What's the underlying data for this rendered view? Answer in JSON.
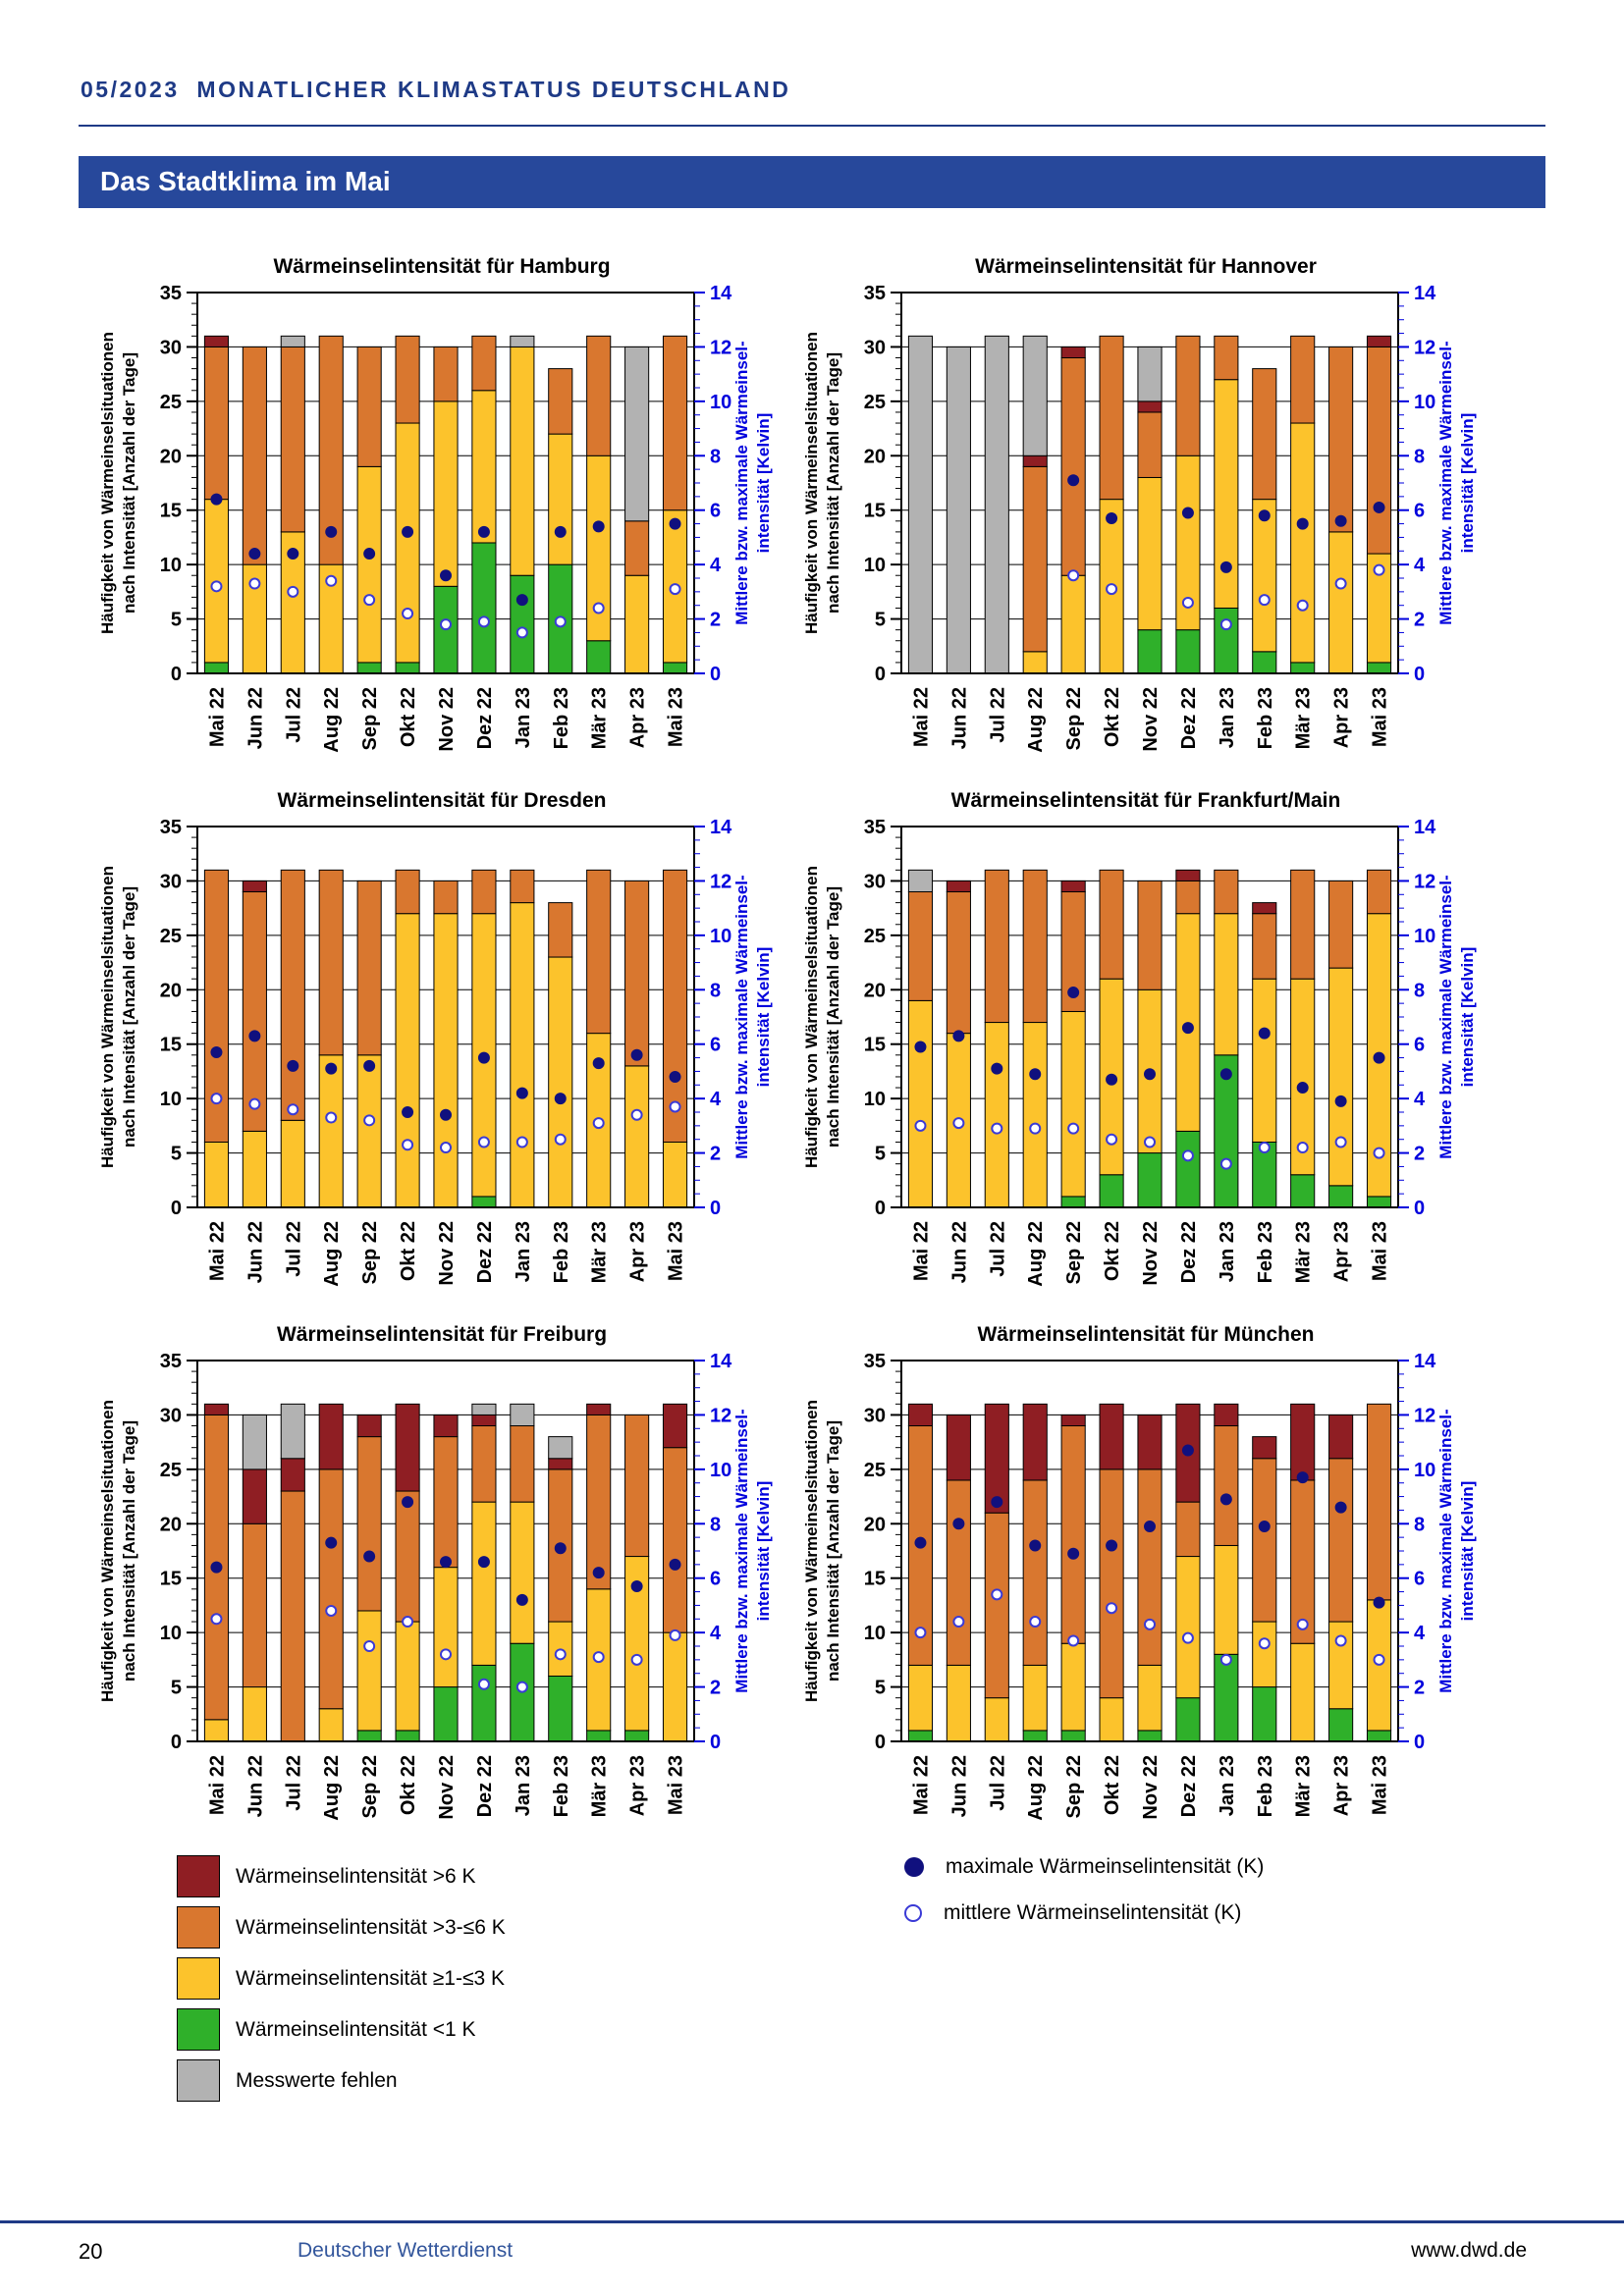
{
  "page": {
    "header_title": "05/2023  MONATLICHER KLIMASTATUS DEUTSCHLAND",
    "banner_title": "Das Stadtklima im Mai"
  },
  "footer": {
    "page_number": "20",
    "publisher": "Deutscher Wetterdienst",
    "website": "www.dwd.de"
  },
  "colors": {
    "darkred": "#8f1e23",
    "orange": "#d9772f",
    "yellow": "#fcc32c",
    "green": "#2fb02a",
    "gray": "#b2b2b2",
    "axis_blue": "#0000dd",
    "dot_fill": "#10107e",
    "dot_open": "#3a3ad6",
    "header_blue": "#1e3a86",
    "banner_bg": "#27489b",
    "footer_link_blue": "#33569c"
  },
  "legend": {
    "categories": [
      {
        "label": "Wärmeinselintensität >6 K",
        "color": "darkred"
      },
      {
        "label": "Wärmeinselintensität >3-≤6 K",
        "color": "orange"
      },
      {
        "label": "Wärmeinselintensität ≥1-≤3 K",
        "color": "yellow"
      },
      {
        "label": "Wärmeinselintensität <1 K",
        "color": "green"
      },
      {
        "label": "Messwerte fehlen",
        "color": "gray"
      }
    ],
    "points": [
      {
        "label": "maximale Wärmeinselintensität (K)",
        "style": "filled"
      },
      {
        "label": "mittlere Wärmeinselintensität (K)",
        "style": "open"
      }
    ]
  },
  "chart_common": {
    "left_axis": {
      "label": [
        "Häufigkeit von Wärmeinselsituationen",
        "nach Intensität [Anzahl der Tage]"
      ],
      "min": 0,
      "max": 35,
      "major_step": 5,
      "minor_step": 1
    },
    "right_axis": {
      "label": [
        "Mittlere bzw. maximale Wärmeinsel-",
        "intensität [Kelvin]"
      ],
      "min": 0,
      "max": 14,
      "major_step": 2,
      "minor_step": 0.5
    },
    "grid": "horizontal-majors",
    "legend_position": "below-figure"
  },
  "chart_data": [
    {
      "city": "Hamburg",
      "title": "Wärmeinselintensität für Hamburg",
      "type": "bar",
      "stacked": true,
      "categories": [
        "Mai 22",
        "Jun 22",
        "Jul 22",
        "Aug 22",
        "Sep 22",
        "Okt 22",
        "Nov 22",
        "Dez 22",
        "Jan 23",
        "Feb 23",
        "Mär 23",
        "Apr 23",
        "Mai 23"
      ],
      "series": [
        {
          "name": "Wärmeinselintensität <1 K",
          "color": "green",
          "values": [
            1,
            0,
            0,
            0,
            1,
            1,
            8,
            12,
            9,
            10,
            3,
            0,
            1
          ]
        },
        {
          "name": "Wärmeinselintensität ≥1-≤3 K",
          "color": "yellow",
          "values": [
            15,
            10,
            13,
            10,
            18,
            22,
            17,
            14,
            21,
            12,
            17,
            9,
            14
          ]
        },
        {
          "name": "Wärmeinselintensität >3-≤6 K",
          "color": "orange",
          "values": [
            14,
            20,
            17,
            21,
            11,
            8,
            5,
            5,
            0,
            6,
            11,
            5,
            16
          ]
        },
        {
          "name": "Wärmeinselintensität >6 K",
          "color": "darkred",
          "values": [
            1,
            0,
            0,
            0,
            0,
            0,
            0,
            0,
            0,
            0,
            0,
            0,
            0
          ]
        },
        {
          "name": "Messwerte fehlen",
          "color": "gray",
          "values": [
            0,
            0,
            1,
            0,
            0,
            0,
            0,
            0,
            1,
            0,
            0,
            16,
            0
          ]
        }
      ],
      "points": [
        {
          "name": "maximale Wärmeinselintensität (K)",
          "axis": "right",
          "style": "filled",
          "values": [
            6.4,
            4.4,
            4.4,
            5.2,
            4.4,
            5.2,
            3.6,
            5.2,
            2.7,
            5.2,
            5.4,
            null,
            5.5
          ]
        },
        {
          "name": "mittlere Wärmeinselintensität (K)",
          "axis": "right",
          "style": "open",
          "values": [
            3.2,
            3.3,
            3.0,
            3.4,
            2.7,
            2.2,
            1.8,
            1.9,
            1.5,
            1.9,
            2.4,
            null,
            3.1
          ]
        }
      ]
    },
    {
      "city": "Hannover",
      "title": "Wärmeinselintensität für Hannover",
      "type": "bar",
      "stacked": true,
      "categories": [
        "Mai 22",
        "Jun 22",
        "Jul 22",
        "Aug 22",
        "Sep 22",
        "Okt 22",
        "Nov 22",
        "Dez 22",
        "Jan 23",
        "Feb 23",
        "Mär 23",
        "Apr 23",
        "Mai 23"
      ],
      "series": [
        {
          "name": "Wärmeinselintensität <1 K",
          "color": "green",
          "values": [
            0,
            0,
            0,
            0,
            0,
            0,
            4,
            4,
            6,
            2,
            1,
            0,
            1
          ]
        },
        {
          "name": "Wärmeinselintensität ≥1-≤3 K",
          "color": "yellow",
          "values": [
            0,
            0,
            0,
            2,
            9,
            16,
            14,
            16,
            21,
            14,
            22,
            13,
            10
          ]
        },
        {
          "name": "Wärmeinselintensität >3-≤6 K",
          "color": "orange",
          "values": [
            0,
            0,
            0,
            17,
            20,
            15,
            6,
            11,
            4,
            12,
            8,
            17,
            19
          ]
        },
        {
          "name": "Wärmeinselintensität >6 K",
          "color": "darkred",
          "values": [
            0,
            0,
            0,
            1,
            1,
            0,
            1,
            0,
            0,
            0,
            0,
            0,
            1
          ]
        },
        {
          "name": "Messwerte fehlen",
          "color": "gray",
          "values": [
            31,
            30,
            31,
            11,
            0,
            0,
            5,
            0,
            0,
            0,
            0,
            0,
            0
          ]
        }
      ],
      "points": [
        {
          "name": "maximale Wärmeinselintensität (K)",
          "axis": "right",
          "style": "filled",
          "values": [
            null,
            null,
            null,
            null,
            7.1,
            5.7,
            null,
            5.9,
            3.9,
            5.8,
            5.5,
            5.6,
            6.1
          ]
        },
        {
          "name": "mittlere Wärmeinselintensität (K)",
          "axis": "right",
          "style": "open",
          "values": [
            null,
            null,
            null,
            null,
            3.6,
            3.1,
            null,
            2.6,
            1.8,
            2.7,
            2.5,
            3.3,
            3.8
          ]
        }
      ]
    },
    {
      "city": "Dresden",
      "title": "Wärmeinselintensität für Dresden",
      "type": "bar",
      "stacked": true,
      "categories": [
        "Mai 22",
        "Jun 22",
        "Jul 22",
        "Aug 22",
        "Sep 22",
        "Okt 22",
        "Nov 22",
        "Dez 22",
        "Jan 23",
        "Feb 23",
        "Mär 23",
        "Apr 23",
        "Mai 23"
      ],
      "series": [
        {
          "name": "Wärmeinselintensität <1 K",
          "color": "green",
          "values": [
            0,
            0,
            0,
            0,
            0,
            0,
            0,
            1,
            0,
            0,
            0,
            0,
            0
          ]
        },
        {
          "name": "Wärmeinselintensität ≥1-≤3 K",
          "color": "yellow",
          "values": [
            6,
            7,
            8,
            14,
            14,
            27,
            27,
            26,
            28,
            23,
            16,
            13,
            6
          ]
        },
        {
          "name": "Wärmeinselintensität >3-≤6 K",
          "color": "orange",
          "values": [
            25,
            22,
            23,
            17,
            16,
            4,
            3,
            4,
            3,
            5,
            15,
            17,
            25
          ]
        },
        {
          "name": "Wärmeinselintensität >6 K",
          "color": "darkred",
          "values": [
            0,
            1,
            0,
            0,
            0,
            0,
            0,
            0,
            0,
            0,
            0,
            0,
            0
          ]
        },
        {
          "name": "Messwerte fehlen",
          "color": "gray",
          "values": [
            0,
            0,
            0,
            0,
            0,
            0,
            0,
            0,
            0,
            0,
            0,
            0,
            0
          ]
        }
      ],
      "points": [
        {
          "name": "maximale Wärmeinselintensität (K)",
          "axis": "right",
          "style": "filled",
          "values": [
            5.7,
            6.3,
            5.2,
            5.1,
            5.2,
            3.5,
            3.4,
            5.5,
            4.2,
            4.0,
            5.3,
            5.6,
            4.8
          ]
        },
        {
          "name": "mittlere Wärmeinselintensität (K)",
          "axis": "right",
          "style": "open",
          "values": [
            4.0,
            3.8,
            3.6,
            3.3,
            3.2,
            2.3,
            2.2,
            2.4,
            2.4,
            2.5,
            3.1,
            3.4,
            3.7
          ]
        }
      ]
    },
    {
      "city": "Frankfurt/Main",
      "title": "Wärmeinselintensität für Frankfurt/Main",
      "type": "bar",
      "stacked": true,
      "categories": [
        "Mai 22",
        "Jun 22",
        "Jul 22",
        "Aug 22",
        "Sep 22",
        "Okt 22",
        "Nov 22",
        "Dez 22",
        "Jan 23",
        "Feb 23",
        "Mär 23",
        "Apr 23",
        "Mai 23"
      ],
      "series": [
        {
          "name": "Wärmeinselintensität <1 K",
          "color": "green",
          "values": [
            0,
            0,
            0,
            0,
            1,
            3,
            5,
            7,
            14,
            6,
            3,
            2,
            1
          ]
        },
        {
          "name": "Wärmeinselintensität ≥1-≤3 K",
          "color": "yellow",
          "values": [
            19,
            16,
            17,
            17,
            17,
            18,
            15,
            20,
            13,
            15,
            18,
            20,
            26
          ]
        },
        {
          "name": "Wärmeinselintensität >3-≤6 K",
          "color": "orange",
          "values": [
            10,
            13,
            14,
            14,
            11,
            10,
            10,
            3,
            4,
            6,
            10,
            8,
            4
          ]
        },
        {
          "name": "Wärmeinselintensität >6 K",
          "color": "darkred",
          "values": [
            0,
            1,
            0,
            0,
            1,
            0,
            0,
            1,
            0,
            1,
            0,
            0,
            0
          ]
        },
        {
          "name": "Messwerte fehlen",
          "color": "gray",
          "values": [
            2,
            0,
            0,
            0,
            0,
            0,
            0,
            0,
            0,
            0,
            0,
            0,
            0
          ]
        }
      ],
      "points": [
        {
          "name": "maximale Wärmeinselintensität (K)",
          "axis": "right",
          "style": "filled",
          "values": [
            5.9,
            6.3,
            5.1,
            4.9,
            7.9,
            4.7,
            4.9,
            6.6,
            4.9,
            6.4,
            4.4,
            3.9,
            5.5
          ]
        },
        {
          "name": "mittlere Wärmeinselintensität (K)",
          "axis": "right",
          "style": "open",
          "values": [
            3.0,
            3.1,
            2.9,
            2.9,
            2.9,
            2.5,
            2.4,
            1.9,
            1.6,
            2.2,
            2.2,
            2.4,
            2.0
          ]
        }
      ]
    },
    {
      "city": "Freiburg",
      "title": "Wärmeinselintensität für Freiburg",
      "type": "bar",
      "stacked": true,
      "categories": [
        "Mai 22",
        "Jun 22",
        "Jul 22",
        "Aug 22",
        "Sep 22",
        "Okt 22",
        "Nov 22",
        "Dez 22",
        "Jan 23",
        "Feb 23",
        "Mär 23",
        "Apr 23",
        "Mai 23"
      ],
      "series": [
        {
          "name": "Wärmeinselintensität <1 K",
          "color": "green",
          "values": [
            0,
            0,
            0,
            0,
            1,
            1,
            5,
            7,
            9,
            6,
            1,
            1,
            0
          ]
        },
        {
          "name": "Wärmeinselintensität ≥1-≤3 K",
          "color": "yellow",
          "values": [
            2,
            5,
            0,
            3,
            11,
            10,
            11,
            15,
            13,
            5,
            13,
            16,
            10
          ]
        },
        {
          "name": "Wärmeinselintensität >3-≤6 K",
          "color": "orange",
          "values": [
            28,
            15,
            23,
            22,
            16,
            12,
            12,
            7,
            7,
            14,
            16,
            13,
            17
          ]
        },
        {
          "name": "Wärmeinselintensität >6 K",
          "color": "darkred",
          "values": [
            1,
            5,
            3,
            6,
            2,
            8,
            2,
            1,
            0,
            1,
            1,
            0,
            4
          ]
        },
        {
          "name": "Messwerte fehlen",
          "color": "gray",
          "values": [
            0,
            5,
            5,
            0,
            0,
            0,
            0,
            1,
            2,
            2,
            0,
            0,
            0
          ]
        }
      ],
      "points": [
        {
          "name": "maximale Wärmeinselintensität (K)",
          "axis": "right",
          "style": "filled",
          "values": [
            6.4,
            null,
            null,
            7.3,
            6.8,
            8.8,
            6.6,
            6.6,
            5.2,
            7.1,
            6.2,
            5.7,
            6.5
          ]
        },
        {
          "name": "mittlere Wärmeinselintensität (K)",
          "axis": "right",
          "style": "open",
          "values": [
            4.5,
            null,
            null,
            4.8,
            3.5,
            4.4,
            3.2,
            2.1,
            2.0,
            3.2,
            3.1,
            3.0,
            3.9
          ]
        }
      ]
    },
    {
      "city": "München",
      "title": "Wärmeinselintensität für München",
      "type": "bar",
      "stacked": true,
      "categories": [
        "Mai 22",
        "Jun 22",
        "Jul 22",
        "Aug 22",
        "Sep 22",
        "Okt 22",
        "Nov 22",
        "Dez 22",
        "Jan 23",
        "Feb 23",
        "Mär 23",
        "Apr 23",
        "Mai 23"
      ],
      "series": [
        {
          "name": "Wärmeinselintensität <1 K",
          "color": "green",
          "values": [
            1,
            0,
            0,
            1,
            1,
            0,
            1,
            4,
            8,
            5,
            0,
            3,
            1
          ]
        },
        {
          "name": "Wärmeinselintensität ≥1-≤3 K",
          "color": "yellow",
          "values": [
            6,
            7,
            4,
            6,
            8,
            4,
            6,
            13,
            10,
            6,
            9,
            8,
            12
          ]
        },
        {
          "name": "Wärmeinselintensität >3-≤6 K",
          "color": "orange",
          "values": [
            22,
            17,
            17,
            17,
            20,
            21,
            18,
            5,
            11,
            15,
            15,
            15,
            18
          ]
        },
        {
          "name": "Wärmeinselintensität >6 K",
          "color": "darkred",
          "values": [
            2,
            6,
            10,
            7,
            1,
            6,
            5,
            9,
            2,
            2,
            7,
            4,
            0
          ]
        },
        {
          "name": "Messwerte fehlen",
          "color": "gray",
          "values": [
            0,
            0,
            0,
            0,
            0,
            0,
            0,
            0,
            0,
            0,
            0,
            0,
            0
          ]
        }
      ],
      "points": [
        {
          "name": "maximale Wärmeinselintensität (K)",
          "axis": "right",
          "style": "filled",
          "values": [
            7.3,
            8.0,
            8.8,
            7.2,
            6.9,
            7.2,
            7.9,
            10.7,
            8.9,
            7.9,
            9.7,
            8.6,
            5.1
          ]
        },
        {
          "name": "mittlere Wärmeinselintensität (K)",
          "axis": "right",
          "style": "open",
          "values": [
            4.0,
            4.4,
            5.4,
            4.4,
            3.7,
            4.9,
            4.3,
            3.8,
            3.0,
            3.6,
            4.3,
            3.7,
            3.0
          ]
        }
      ]
    }
  ]
}
